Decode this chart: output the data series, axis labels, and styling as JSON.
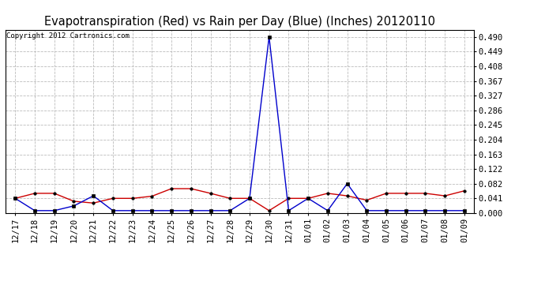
{
  "title": "Evapotranspiration (Red) vs Rain per Day (Blue) (Inches) 20120110",
  "copyright": "Copyright 2012 Cartronics.com",
  "x_labels": [
    "12/17",
    "12/18",
    "12/19",
    "12/20",
    "12/21",
    "12/22",
    "12/23",
    "12/24",
    "12/25",
    "12/26",
    "12/27",
    "12/28",
    "12/29",
    "12/30",
    "12/31",
    "01/01",
    "01/02",
    "01/03",
    "01/04",
    "01/05",
    "01/06",
    "01/07",
    "01/08",
    "01/09"
  ],
  "red_data": [
    0.041,
    0.055,
    0.055,
    0.033,
    0.028,
    0.041,
    0.041,
    0.047,
    0.068,
    0.068,
    0.055,
    0.041,
    0.041,
    0.007,
    0.041,
    0.041,
    0.055,
    0.048,
    0.036,
    0.055,
    0.055,
    0.055,
    0.048,
    0.062
  ],
  "blue_data": [
    0.041,
    0.007,
    0.007,
    0.02,
    0.048,
    0.007,
    0.007,
    0.007,
    0.007,
    0.007,
    0.007,
    0.007,
    0.041,
    0.49,
    0.007,
    0.041,
    0.007,
    0.082,
    0.007,
    0.007,
    0.007,
    0.007,
    0.007,
    0.007
  ],
  "y_ticks": [
    0.0,
    0.041,
    0.082,
    0.122,
    0.163,
    0.204,
    0.245,
    0.286,
    0.327,
    0.367,
    0.408,
    0.449,
    0.49
  ],
  "ylim": [
    0.0,
    0.51
  ],
  "background_color": "#ffffff",
  "plot_bg_color": "#ffffff",
  "grid_color": "#bbbbbb",
  "red_color": "#cc0000",
  "blue_color": "#0000cc",
  "title_fontsize": 10.5,
  "tick_fontsize": 7.5,
  "copyright_fontsize": 6.5
}
